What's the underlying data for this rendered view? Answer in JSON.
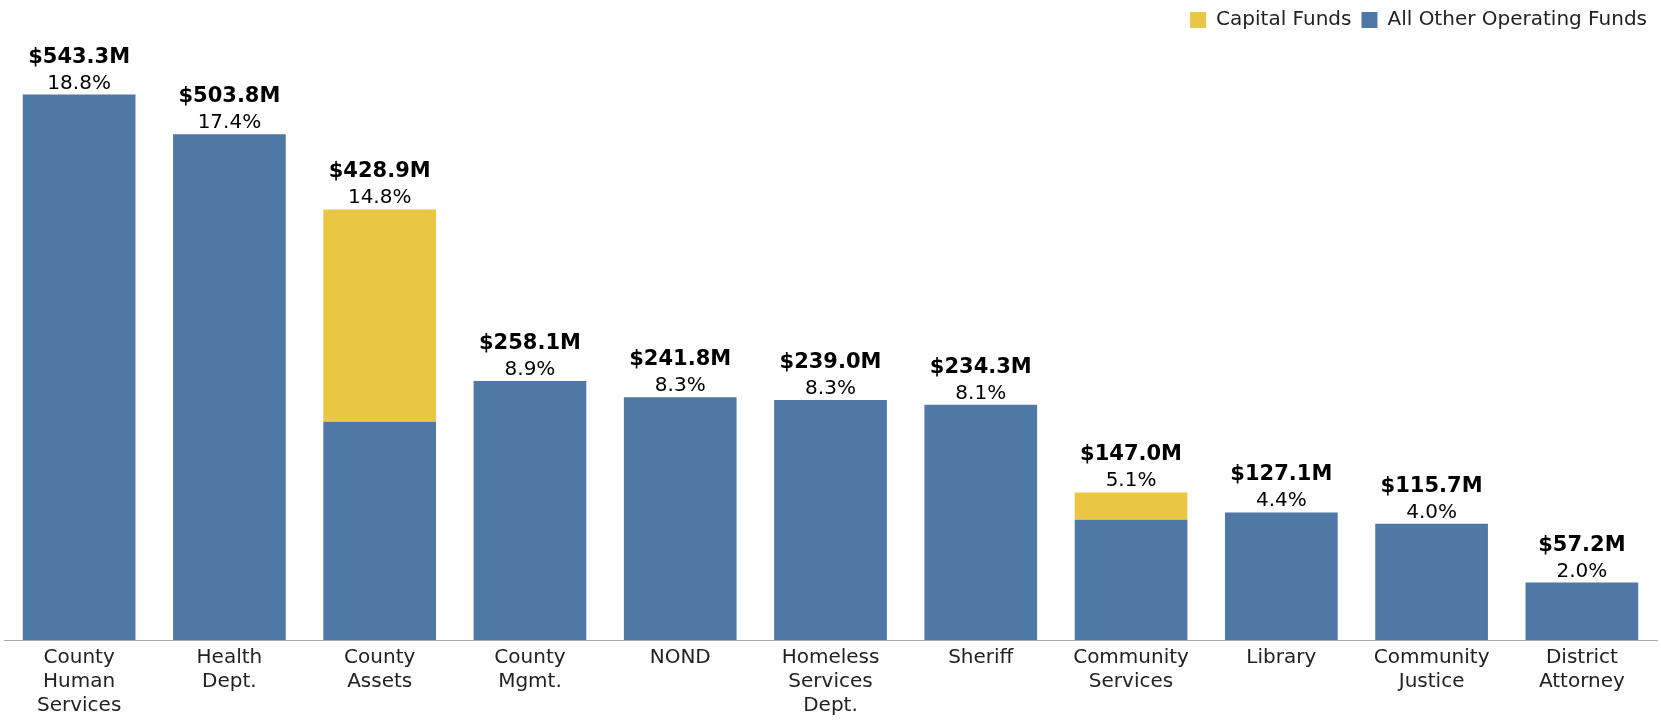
{
  "chart_data": {
    "type": "bar",
    "stacked": true,
    "legend": "top",
    "tick_labels": "x",
    "categories": [
      "County Human Services",
      "Health Dept.",
      "County Assets",
      "County Mgmt.",
      "NOND",
      "Homeless Services Dept.",
      "Sheriff",
      "Community Services",
      "Library",
      "Community Justice",
      "District Attorney"
    ],
    "series": [
      {
        "name": "All Other Operating Funds",
        "color": "#4e78a6",
        "values": [
          543.3,
          503.8,
          217.3,
          258.1,
          241.8,
          239.0,
          234.3,
          119.8,
          127.1,
          115.7,
          57.2
        ],
        "value_labels": [
          "$543.3M",
          "$503.8M",
          null,
          "$258.1M",
          "$241.8M",
          "$239.0M",
          "$234.3M",
          null,
          "$127.1M",
          "$115.7M",
          "$57.2M"
        ]
      },
      {
        "name": "Capital Funds",
        "color": "#eac645",
        "values": [
          null,
          null,
          211.6,
          null,
          null,
          null,
          null,
          27.2,
          null,
          null,
          null
        ]
      }
    ],
    "totals": [
      null,
      null,
      "$428.9M",
      null,
      null,
      null,
      null,
      "$147.0M",
      null,
      null,
      null
    ],
    "annotations": [
      {
        "text": "18.8%",
        "x": "County Human Services",
        "y": 543.3
      },
      {
        "text": "17.4%",
        "x": "Health Dept.",
        "y": 503.8
      },
      {
        "text": "14.8%",
        "x": "County Assets",
        "y": 428.9
      },
      {
        "text": "8.9%",
        "x": "County Mgmt.",
        "y": 258.1
      },
      {
        "text": "8.3%",
        "x": "NOND",
        "y": 241.8
      },
      {
        "text": "8.3%",
        "x": "Homeless Services Dept.",
        "y": 239.0
      },
      {
        "text": "8.1%",
        "x": "Sheriff",
        "y": 234.3
      },
      {
        "text": "5.1%",
        "x": "Community Services",
        "y": 147.0
      },
      {
        "text": "4.4%",
        "x": "Library",
        "y": 127.1
      },
      {
        "text": "4.0%",
        "x": "Community Justice",
        "y": 115.7
      },
      {
        "text": "2.0%",
        "x": "District Attorney",
        "y": 57.2
      }
    ]
  }
}
